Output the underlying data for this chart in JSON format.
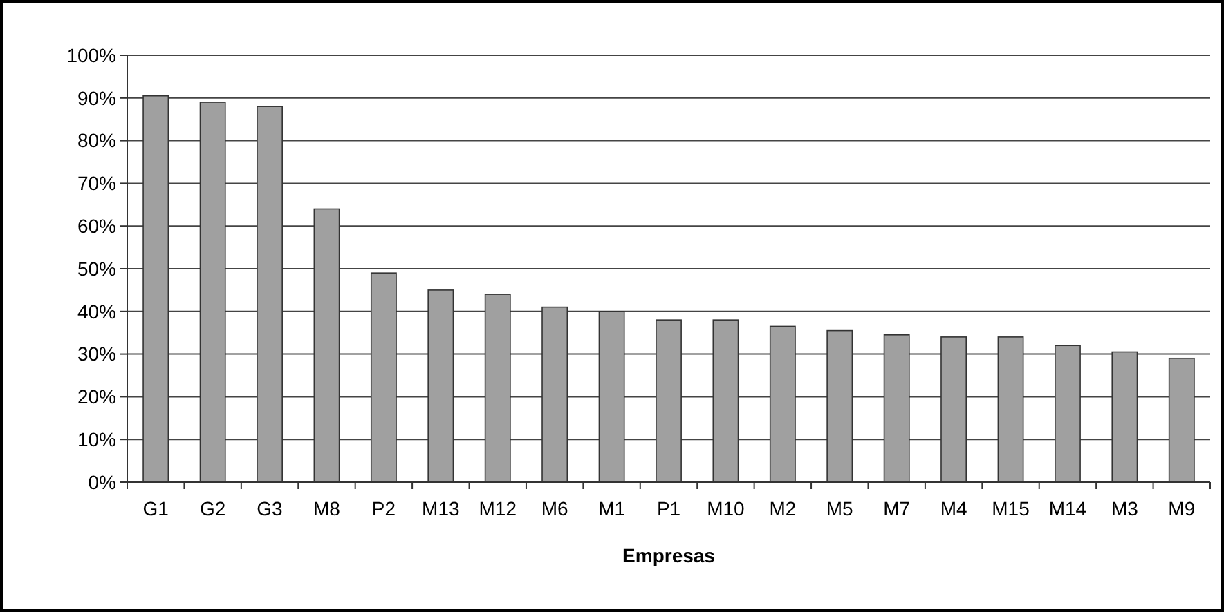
{
  "chart_data": {
    "type": "bar",
    "xlabel": "Empresas",
    "categories": [
      "G1",
      "G2",
      "G3",
      "M8",
      "P2",
      "M13",
      "M12",
      "M6",
      "M1",
      "P1",
      "M10",
      "M2",
      "M5",
      "M7",
      "M4",
      "M15",
      "M14",
      "M3",
      "M9"
    ],
    "values": [
      90.5,
      89,
      88,
      64,
      49,
      45,
      44,
      41,
      40,
      38,
      38,
      36.5,
      35.5,
      34.5,
      34,
      34,
      32,
      30.5,
      29
    ],
    "color": "#a0a0a0",
    "ylim": [
      0,
      100
    ],
    "yticks": [
      {
        "value": 0,
        "label": "0%"
      },
      {
        "value": 10,
        "label": "10%"
      },
      {
        "value": 20,
        "label": "20%"
      },
      {
        "value": 30,
        "label": "30%"
      },
      {
        "value": 40,
        "label": "40%"
      },
      {
        "value": 50,
        "label": "50%"
      },
      {
        "value": 60,
        "label": "60%"
      },
      {
        "value": 70,
        "label": "70%"
      },
      {
        "value": 80,
        "label": "80%"
      },
      {
        "value": 90,
        "label": "90%"
      },
      {
        "value": 100,
        "label": "100%"
      }
    ],
    "grid": "y"
  }
}
